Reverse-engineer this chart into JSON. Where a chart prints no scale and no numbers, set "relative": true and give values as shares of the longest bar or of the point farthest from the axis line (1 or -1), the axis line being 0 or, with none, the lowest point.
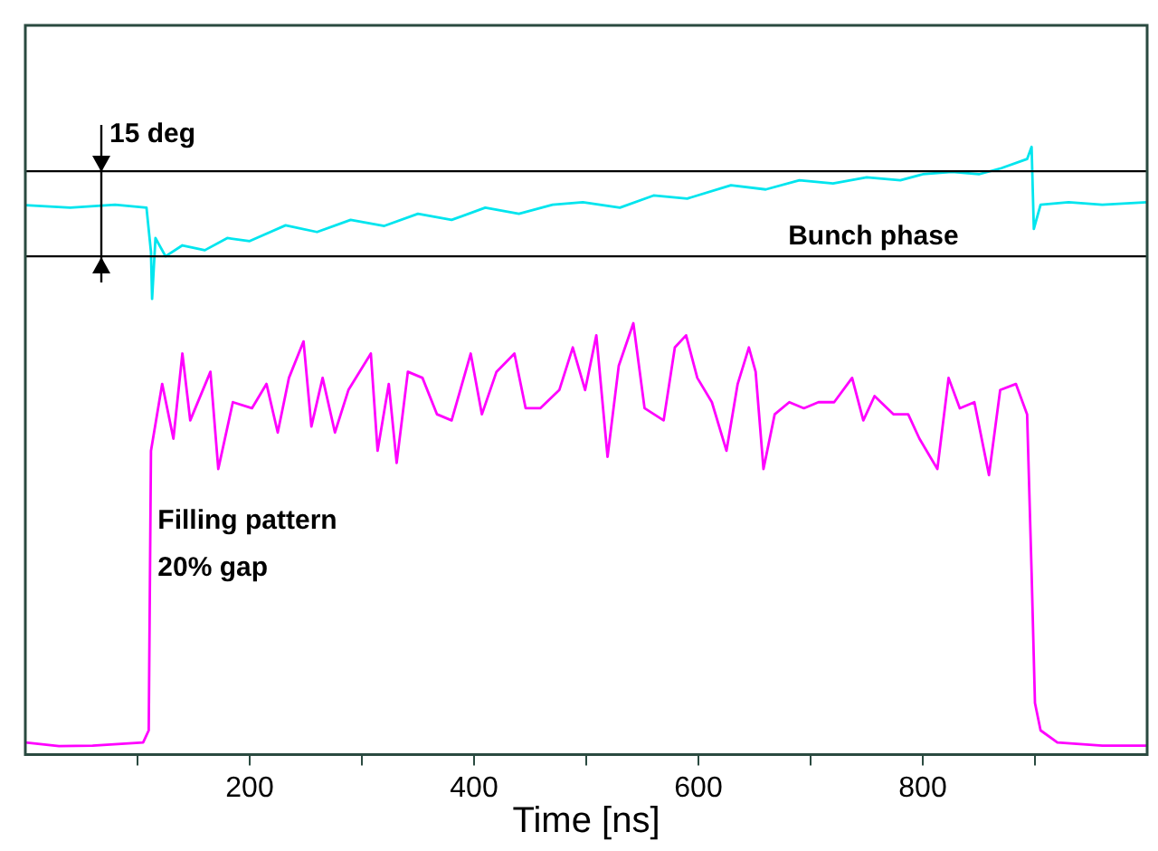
{
  "chart_data": {
    "type": "line",
    "relative": true,
    "xlabel": "Time [ns]",
    "xlim": [
      0,
      1000
    ],
    "xticks": [
      {
        "value": 100,
        "label": null
      },
      200,
      {
        "value": 300,
        "label": null
      },
      400,
      {
        "value": 500,
        "label": null
      },
      600,
      {
        "value": 700,
        "label": null
      },
      800,
      {
        "value": 900,
        "label": null
      }
    ],
    "legend": false,
    "grid": false,
    "marker": "none",
    "line_style": "solid",
    "series": [
      {
        "color": "#00e5ee",
        "x": [
          0,
          40,
          80,
          108,
          112,
          113,
          116,
          125,
          140,
          160,
          180,
          200,
          232,
          260,
          290,
          320,
          350,
          380,
          410,
          440,
          470,
          497,
          530,
          560,
          590,
          629,
          660,
          690,
          720,
          750,
          780,
          800,
          826,
          850,
          870,
          893,
          897,
          899,
          905,
          930,
          960,
          1000
        ],
        "values": [
          0.904,
          0.9,
          0.905,
          0.9,
          0.827,
          0.75,
          0.85,
          0.82,
          0.838,
          0.83,
          0.85,
          0.845,
          0.871,
          0.86,
          0.88,
          0.87,
          0.89,
          0.88,
          0.9,
          0.89,
          0.905,
          0.909,
          0.9,
          0.92,
          0.915,
          0.937,
          0.93,
          0.945,
          0.94,
          0.95,
          0.945,
          0.955,
          0.959,
          0.955,
          0.965,
          0.98,
          1.0,
          0.865,
          0.905,
          0.909,
          0.905,
          0.909
        ]
      },
      {
        "color": "#ff00ff",
        "x": [
          0,
          30,
          60,
          105,
          110,
          112,
          122,
          132,
          140,
          147,
          165,
          172,
          185,
          202,
          215,
          225,
          235,
          248,
          255,
          265,
          276,
          288,
          308,
          314,
          324,
          331,
          341,
          354,
          367,
          380,
          397,
          407,
          420,
          436,
          446,
          459,
          476,
          488,
          499,
          509,
          519,
          529,
          542,
          552,
          569,
          579,
          589,
          599,
          612,
          625,
          635,
          645,
          651,
          658,
          668,
          681,
          694,
          707,
          721,
          737,
          747,
          757,
          774,
          787,
          797,
          813,
          823,
          833,
          846,
          859,
          869,
          883,
          893,
          897,
          900,
          905,
          920,
          960,
          1000
        ],
        "values": [
          0.02,
          0.014,
          0.015,
          0.02,
          0.04,
          0.5,
          0.61,
          0.52,
          0.66,
          0.55,
          0.63,
          0.47,
          0.58,
          0.57,
          0.61,
          0.53,
          0.62,
          0.68,
          0.54,
          0.62,
          0.53,
          0.6,
          0.66,
          0.5,
          0.61,
          0.48,
          0.63,
          0.62,
          0.56,
          0.55,
          0.66,
          0.56,
          0.63,
          0.66,
          0.57,
          0.57,
          0.6,
          0.67,
          0.6,
          0.69,
          0.49,
          0.64,
          0.71,
          0.57,
          0.55,
          0.67,
          0.69,
          0.62,
          0.58,
          0.5,
          0.61,
          0.67,
          0.63,
          0.47,
          0.56,
          0.58,
          0.57,
          0.58,
          0.58,
          0.62,
          0.55,
          0.59,
          0.56,
          0.56,
          0.52,
          0.47,
          0.62,
          0.57,
          0.58,
          0.46,
          0.6,
          0.61,
          0.56,
          0.3,
          0.085,
          0.04,
          0.02,
          0.015,
          0.015
        ]
      }
    ],
    "ref_lines": [
      {
        "axis": "y",
        "value": 0.96,
        "color": "#000000"
      },
      {
        "axis": "y",
        "value": 0.82,
        "color": "#000000"
      }
    ],
    "annotations": [
      "15 deg",
      "Bunch phase",
      "Filling pattern",
      "20% gap"
    ]
  }
}
